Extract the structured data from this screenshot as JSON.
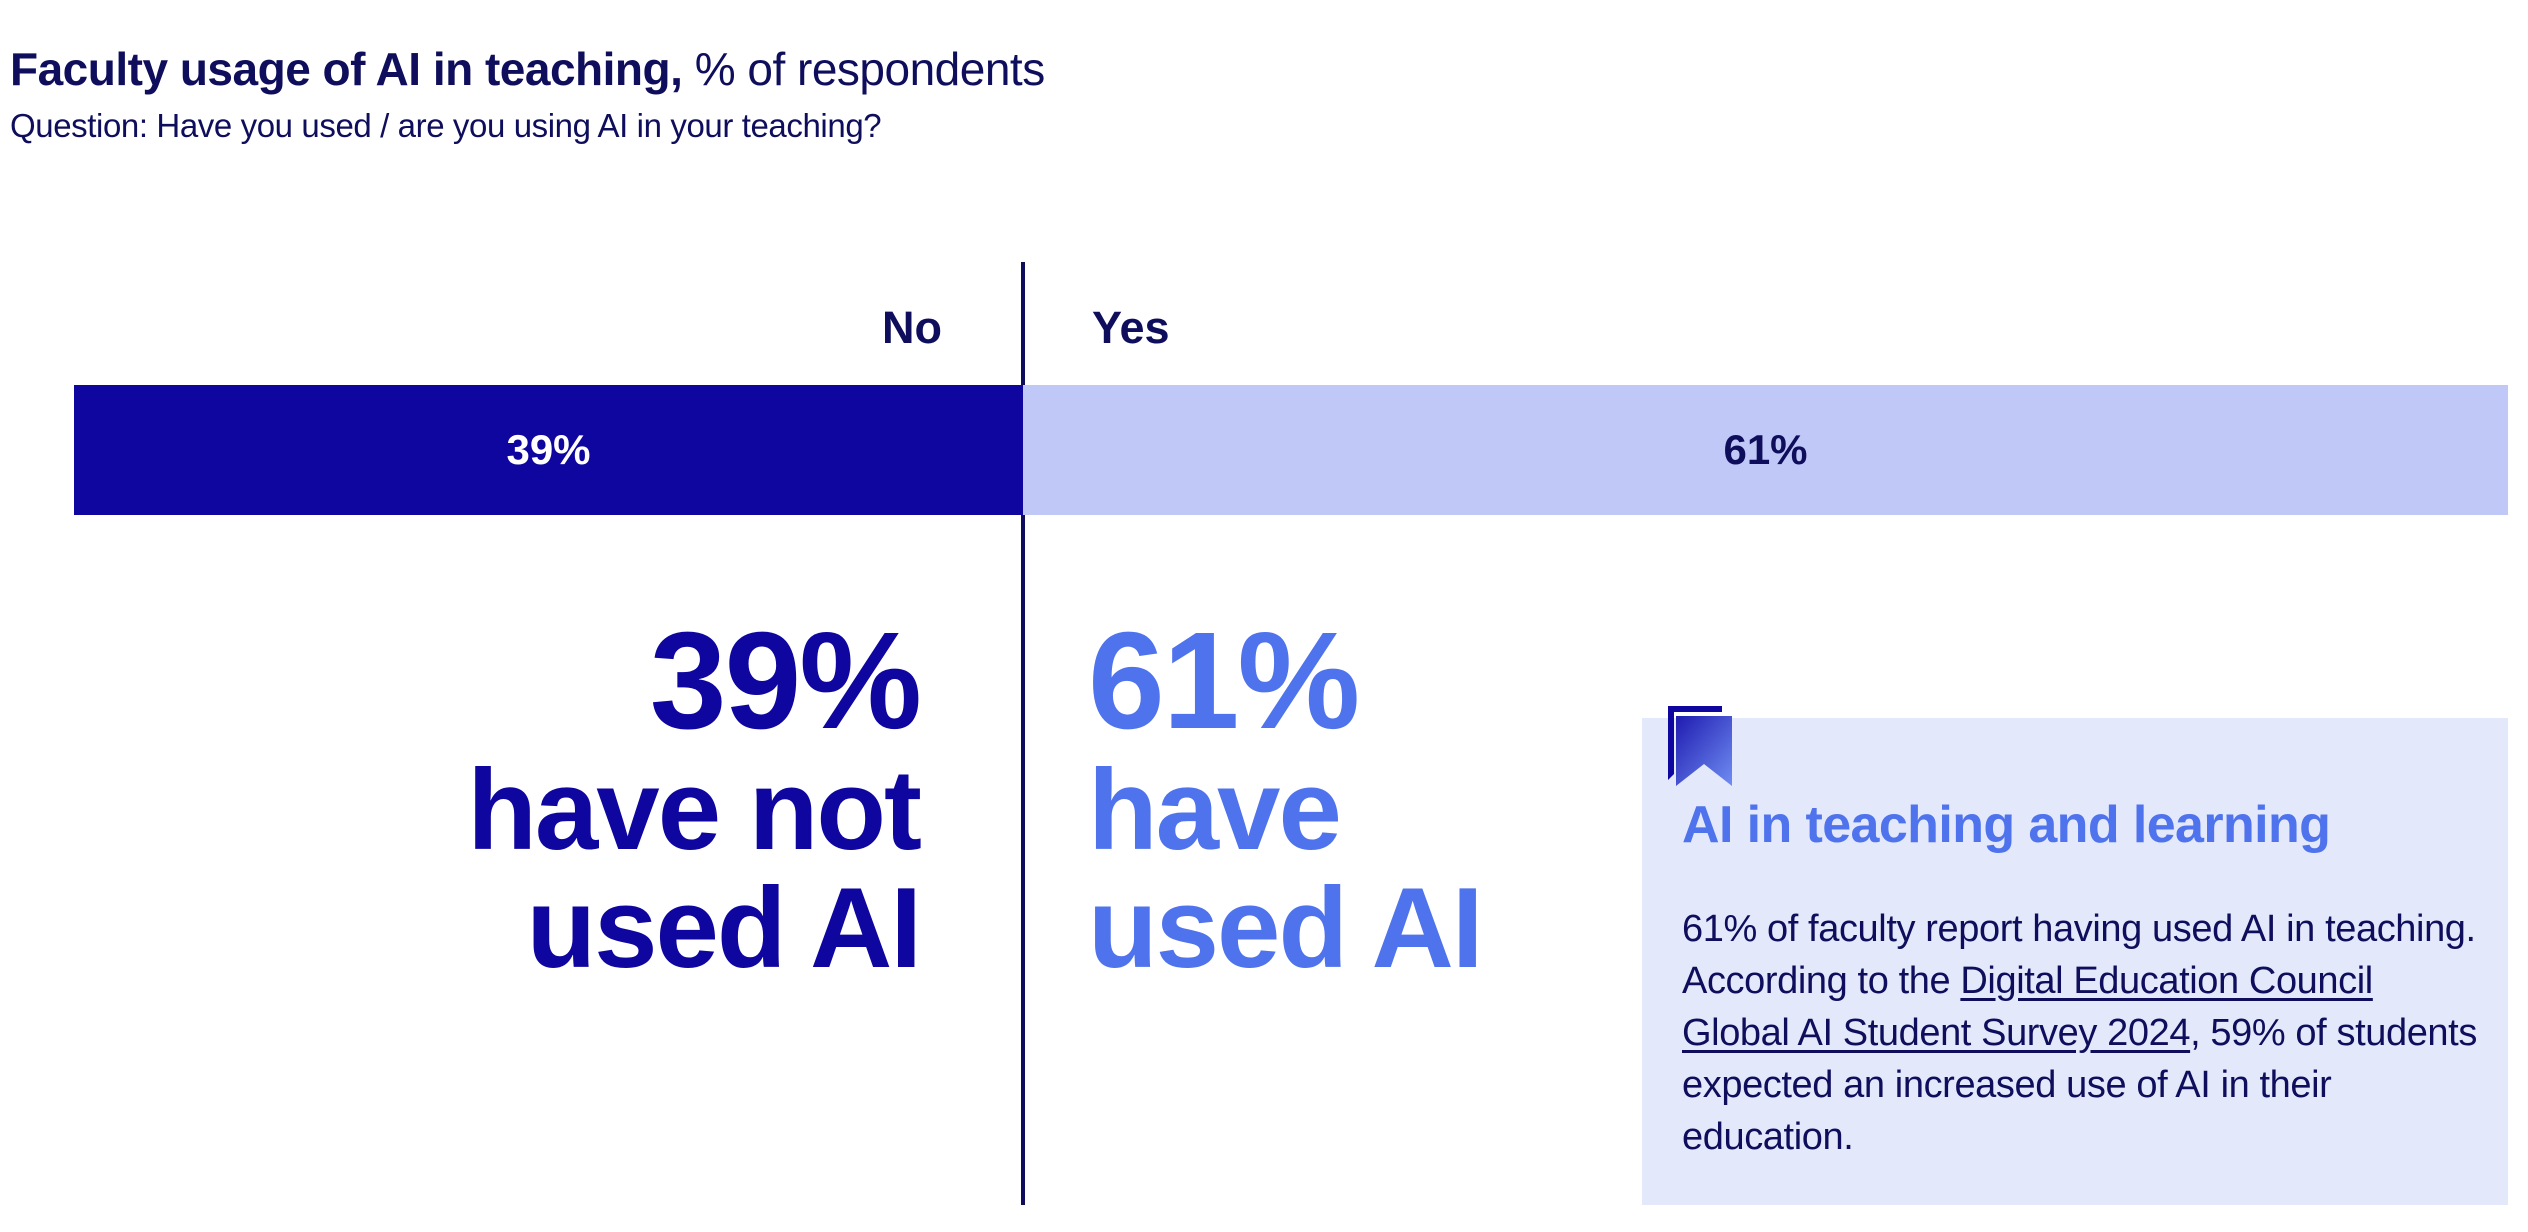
{
  "header": {
    "title_bold": "Faculty usage of AI in teaching,",
    "title_light": "% of respondents",
    "subtitle": "Question: Have you used / are you using AI in your teaching?"
  },
  "chart_data": {
    "type": "bar",
    "orientation": "horizontal-stacked",
    "categories": [
      "No",
      "Yes"
    ],
    "values": [
      39,
      61
    ],
    "value_labels": [
      "39%",
      "61%"
    ],
    "colors": [
      "#0e069f",
      "#c0c8f7"
    ],
    "xlim": [
      0,
      100
    ]
  },
  "highlights": {
    "no": {
      "percent": "39%",
      "line1": "have not",
      "line2": "used AI",
      "color": "#0e069f"
    },
    "yes": {
      "percent": "61%",
      "line1": "have",
      "line2": "used AI",
      "color": "#4f73ec"
    }
  },
  "callout": {
    "icon": "bookmark-icon",
    "title": "AI in teaching and learning",
    "text_before": "61% of faculty report having used AI in teaching. According to the ",
    "link_text": "Digital Education Council Global AI Student Survey 2024",
    "text_after": ", 59% of students expected an increased use of AI in their education."
  }
}
